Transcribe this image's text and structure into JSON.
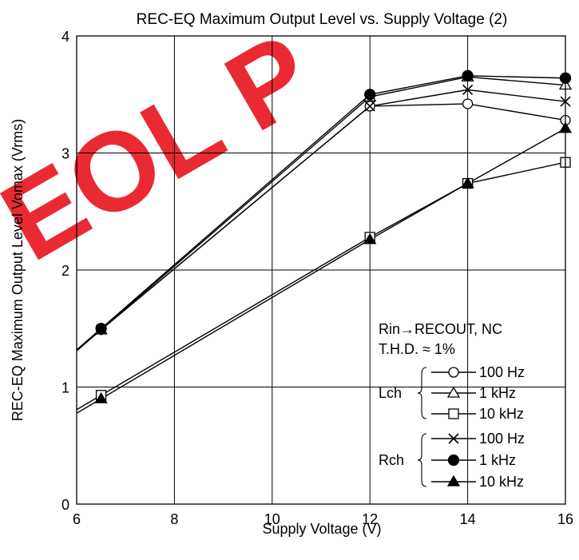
{
  "chart_data": {
    "type": "line",
    "title": "REC-EQ Maximum Output Level vs. Supply Voltage (2)",
    "xlabel": "Supply Voltage  (V)",
    "ylabel": "REC-EQ Maximum Output Level  Vomax  (Vrms)",
    "xlim": [
      6,
      16
    ],
    "ylim": [
      0,
      4
    ],
    "xticks": [
      6,
      8,
      10,
      12,
      14,
      16
    ],
    "yticks": [
      0,
      1,
      2,
      3,
      4
    ],
    "grid": true,
    "legend": {
      "placement": "bottom-right",
      "condition1": "Rin→RECOUT,  NC",
      "condition2": "T.H.D. ≈ 1%",
      "groups": [
        {
          "label": "Lch",
          "entries": [
            "100 Hz",
            "1 kHz",
            "10 kHz"
          ]
        },
        {
          "label": "Rch",
          "entries": [
            "100 Hz",
            "1 kHz",
            "10 kHz"
          ]
        }
      ]
    },
    "series": [
      {
        "channel": "Lch",
        "freq": "100 Hz",
        "marker": "circle-open",
        "x": [
          6.5,
          12,
          14,
          16
        ],
        "y": [
          1.49,
          3.4,
          3.42,
          3.28
        ]
      },
      {
        "channel": "Lch",
        "freq": "1 kHz",
        "marker": "triangle-open",
        "x": [
          6.5,
          12,
          14,
          16
        ],
        "y": [
          1.49,
          3.48,
          3.65,
          3.58
        ]
      },
      {
        "channel": "Lch",
        "freq": "10 kHz",
        "marker": "square-open",
        "x": [
          6.5,
          12,
          14,
          16
        ],
        "y": [
          0.93,
          2.28,
          2.74,
          2.92
        ]
      },
      {
        "channel": "Rch",
        "freq": "100 Hz",
        "marker": "x",
        "x": [
          6.5,
          12,
          14,
          16
        ],
        "y": [
          1.49,
          3.4,
          3.54,
          3.44
        ]
      },
      {
        "channel": "Rch",
        "freq": "1 kHz",
        "marker": "circle-filled",
        "x": [
          6.5,
          12,
          14,
          16
        ],
        "y": [
          1.5,
          3.5,
          3.66,
          3.64
        ]
      },
      {
        "channel": "Rch",
        "freq": "10 kHz",
        "marker": "triangle-filled",
        "x": [
          6.5,
          12,
          14,
          16
        ],
        "y": [
          0.9,
          2.26,
          2.74,
          3.21
        ]
      }
    ]
  },
  "watermark": {
    "text": "EOL P",
    "color": "#e8141c"
  }
}
